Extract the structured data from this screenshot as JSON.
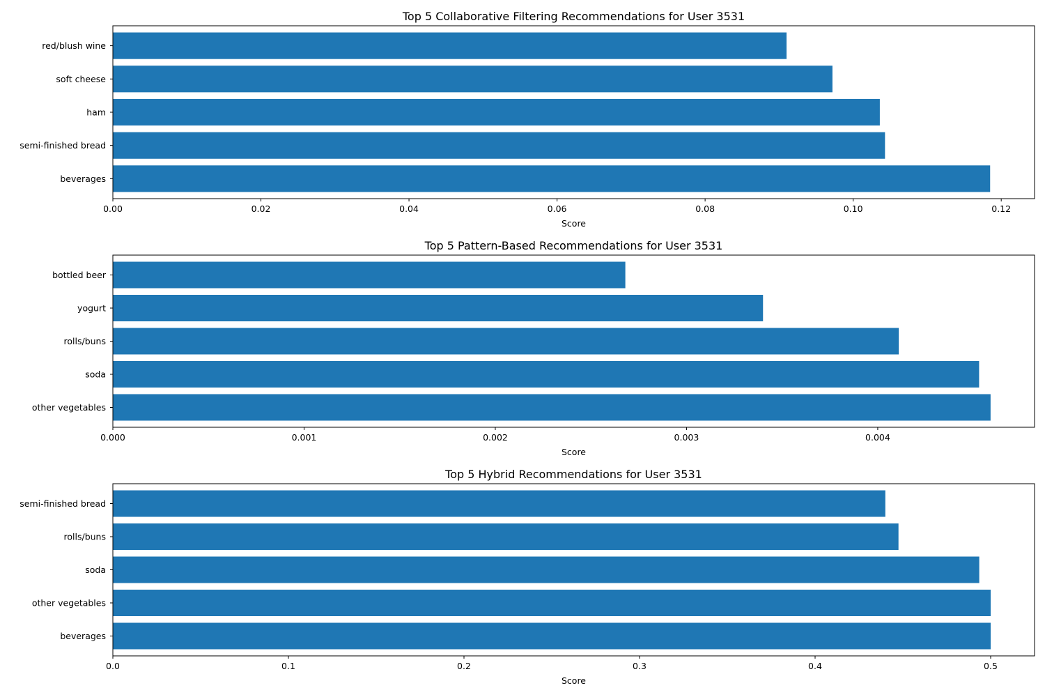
{
  "chart_data": [
    {
      "type": "bar",
      "orientation": "horizontal",
      "title": "Top 5 Collaborative Filtering Recommendations for User 3531",
      "xlabel": "Score",
      "ylabel": "",
      "categories": [
        "beverages",
        "semi-finished bread",
        "ham",
        "soft cheese",
        "red/blush wine"
      ],
      "values": [
        0.1185,
        0.1043,
        0.1036,
        0.0972,
        0.091
      ],
      "xlim": [
        0,
        0.1245
      ],
      "xticks": [
        0,
        0.02,
        0.04,
        0.06,
        0.08,
        0.1,
        0.12
      ],
      "xtick_labels": [
        "0.00",
        "0.02",
        "0.04",
        "0.06",
        "0.08",
        "0.10",
        "0.12"
      ],
      "color": "#1f77b4",
      "grid": false,
      "legend": "none"
    },
    {
      "type": "bar",
      "orientation": "horizontal",
      "title": "Top 5 Pattern-Based Recommendations for User 3531",
      "xlabel": "Score",
      "ylabel": "",
      "categories": [
        "other vegetables",
        "soda",
        "rolls/buns",
        "yogurt",
        "bottled beer"
      ],
      "values": [
        0.00459,
        0.00453,
        0.00411,
        0.0034,
        0.00268
      ],
      "xlim": [
        0,
        0.00482
      ],
      "xticks": [
        0,
        0.001,
        0.002,
        0.003,
        0.004
      ],
      "xtick_labels": [
        "0.000",
        "0.001",
        "0.002",
        "0.003",
        "0.004"
      ],
      "color": "#1f77b4",
      "grid": false,
      "legend": "none"
    },
    {
      "type": "bar",
      "orientation": "horizontal",
      "title": "Top 5 Hybrid Recommendations for User 3531",
      "xlabel": "Score",
      "ylabel": "",
      "categories": [
        "beverages",
        "other vegetables",
        "soda",
        "rolls/buns",
        "semi-finished bread"
      ],
      "values": [
        0.5,
        0.5,
        0.4935,
        0.4475,
        0.44
      ],
      "xlim": [
        0,
        0.525
      ],
      "xticks": [
        0,
        0.1,
        0.2,
        0.3,
        0.4,
        0.5
      ],
      "xtick_labels": [
        "0.0",
        "0.1",
        "0.2",
        "0.3",
        "0.4",
        "0.5"
      ],
      "color": "#1f77b4",
      "grid": false,
      "legend": "none"
    }
  ]
}
